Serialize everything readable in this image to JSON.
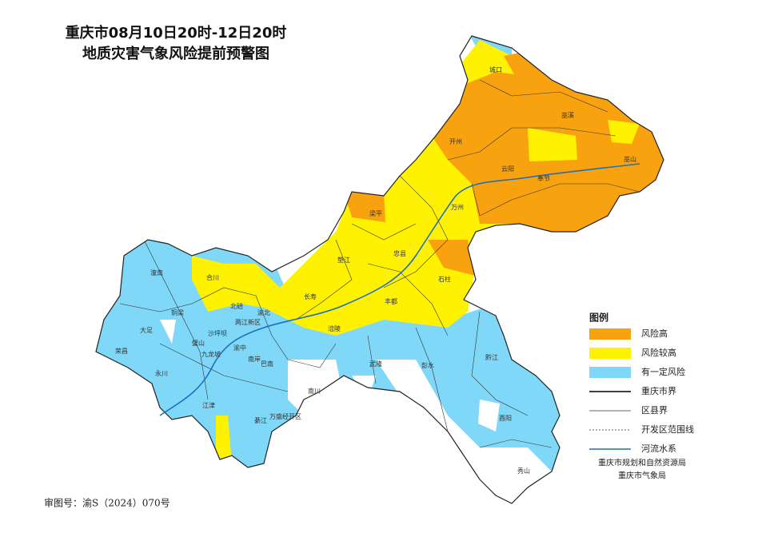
{
  "title": [
    "重庆市08月10日20时-12日20时",
    "地质灾害气象风险提前预警图"
  ],
  "legend": {
    "title": "图例",
    "fills": [
      {
        "label": "风险高",
        "color": "#f7a20e"
      },
      {
        "label": "风险较高",
        "color": "#fff200"
      },
      {
        "label": "有一定风险",
        "color": "#7fd8f8"
      }
    ],
    "lines": [
      "重庆市界",
      "区县界",
      "开发区范围线",
      "河流水系"
    ]
  },
  "districts": [
    "城口",
    "巫溪",
    "开州",
    "云阳",
    "奉节",
    "巫山",
    "梁平",
    "万州",
    "忠县",
    "石柱",
    "垫江",
    "长寿",
    "丰都",
    "涪陵",
    "潼南",
    "合川",
    "北碚",
    "渝北",
    "两江新区",
    "铜梁",
    "大足",
    "璧山",
    "沙坪坝",
    "九龙坡",
    "渝中",
    "南岸",
    "巴南",
    "荣昌",
    "永川",
    "江津",
    "綦江",
    "万盛经开区",
    "南川",
    "武隆",
    "彭水",
    "黔江",
    "酉阳",
    "秀山"
  ],
  "credits": [
    "重庆市规划和自然资源局",
    "重庆市气象局"
  ],
  "approval": "审图号：渝S（2024）070号"
}
